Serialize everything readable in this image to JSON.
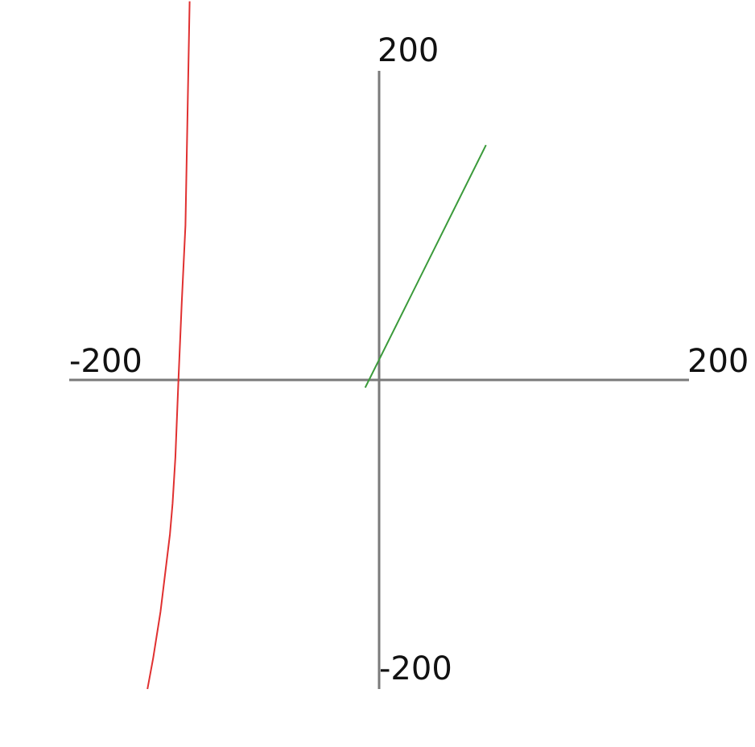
{
  "chart_data": {
    "type": "line",
    "title": "",
    "xlabel": "",
    "ylabel": "",
    "xlim": [
      -200,
      200
    ],
    "ylim": [
      -200,
      200
    ],
    "grid": false,
    "axes": {
      "x_tick_labels": {
        "min": "-200",
        "max": "200"
      },
      "y_tick_labels": {
        "min": "-200",
        "max": "200"
      }
    },
    "series": [
      {
        "color": "#e03030",
        "x": [
          -149.5,
          -145.8,
          -141.1,
          -135.0,
          -133.3,
          -131.5,
          -129.5,
          -127.4,
          -125.0,
          -122.3
        ],
        "y": [
          -200,
          -180,
          -150,
          -100,
          -80,
          -50,
          0,
          50,
          100,
          245
        ]
      },
      {
        "color": "#3a9a3a",
        "x": [
          -9,
          69
        ],
        "y": [
          -5,
          152
        ]
      }
    ]
  }
}
